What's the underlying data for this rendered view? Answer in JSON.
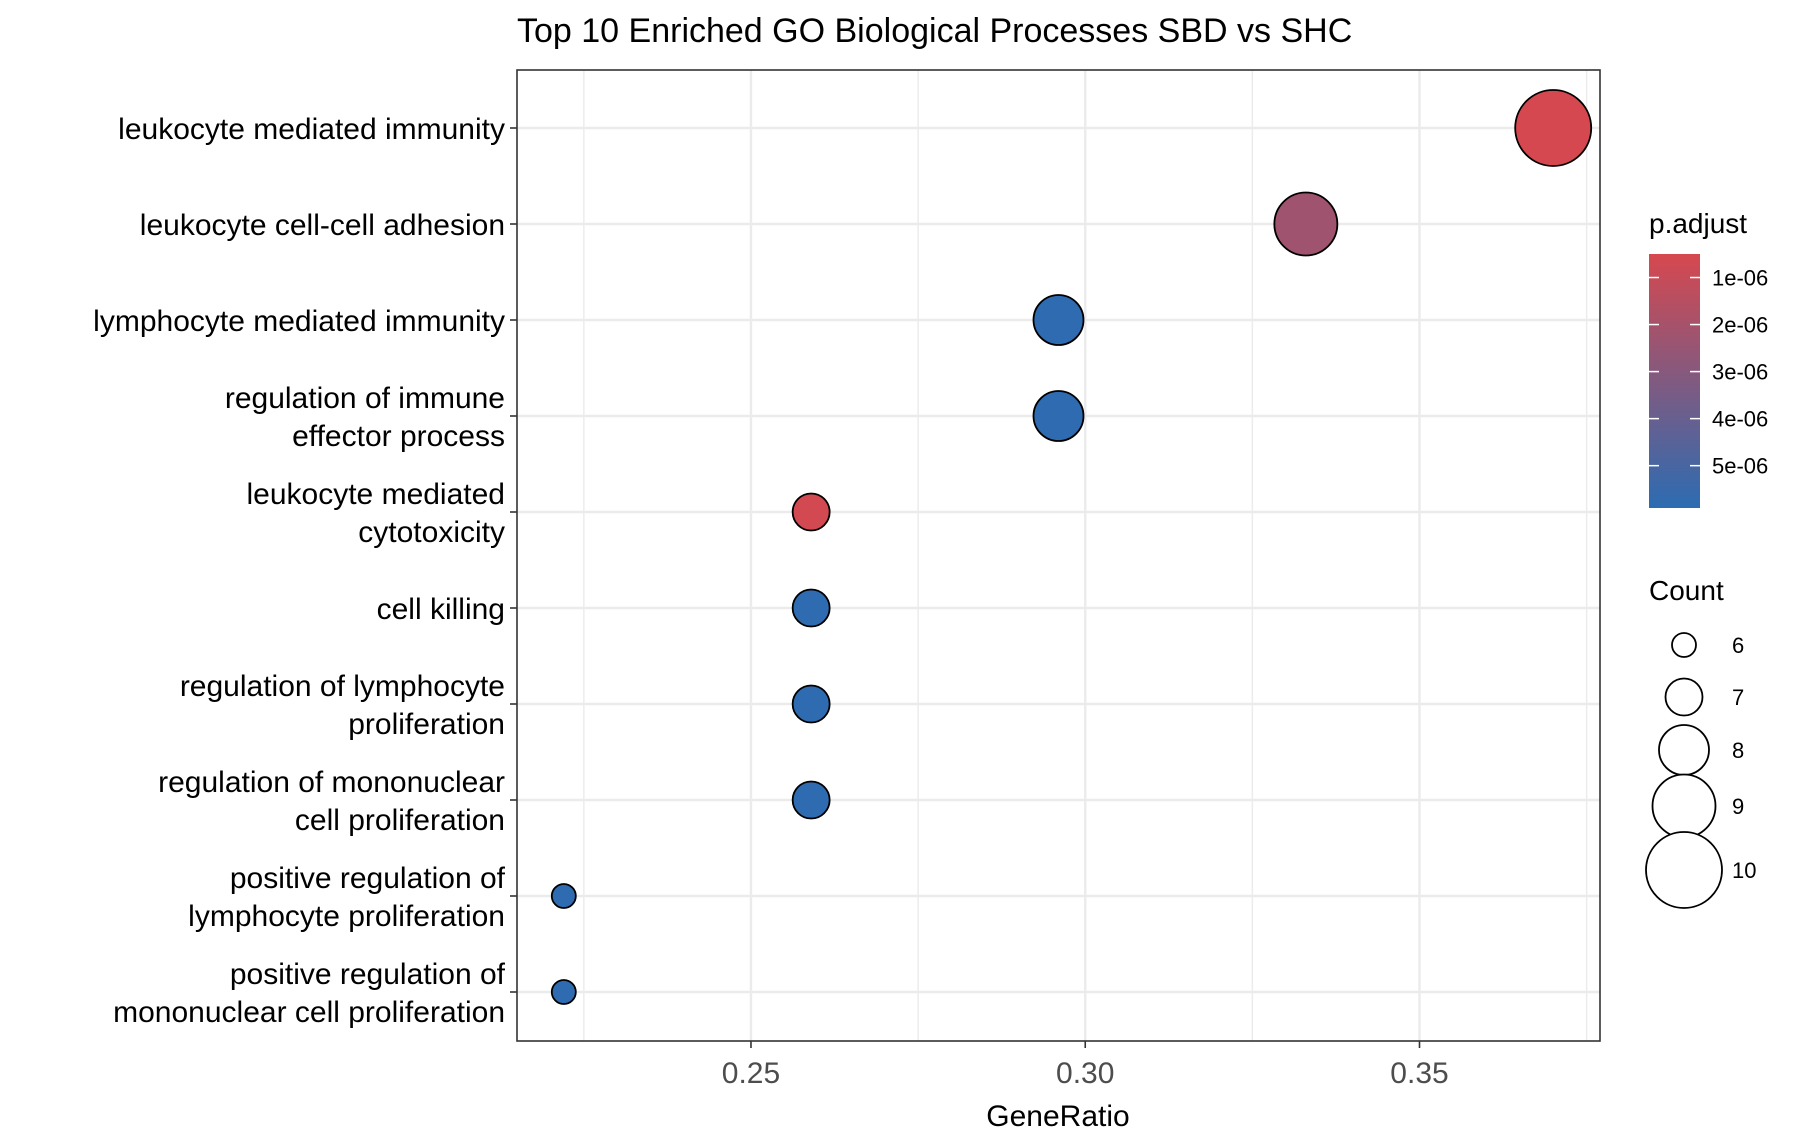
{
  "chart_data": {
    "type": "scatter",
    "title": "Top 10 Enriched GO Biological Processes SBD vs SHC",
    "xlabel": "GeneRatio",
    "ylabel": "",
    "xlim": [
      0.215,
      0.377
    ],
    "x_ticks": [
      0.25,
      0.3,
      0.35
    ],
    "x_tick_labels": [
      "0.25",
      "0.30",
      "0.35"
    ],
    "grid": true,
    "categories": [
      "leukocyte mediated immunity",
      "leukocyte cell-cell adhesion",
      "lymphocyte mediated immunity",
      "regulation of immune effector process",
      "leukocyte mediated cytotoxicity",
      "cell killing",
      "regulation of lymphocyte proliferation",
      "regulation of mononuclear cell proliferation",
      "positive regulation of lymphocyte proliferation",
      "positive regulation of mononuclear cell proliferation"
    ],
    "category_lines": [
      [
        "leukocyte mediated immunity"
      ],
      [
        "leukocyte cell-cell adhesion"
      ],
      [
        "lymphocyte mediated immunity"
      ],
      [
        "regulation of immune",
        "effector process"
      ],
      [
        "leukocyte mediated",
        "cytotoxicity"
      ],
      [
        "cell killing"
      ],
      [
        "regulation of lymphocyte",
        "proliferation"
      ],
      [
        "regulation of mononuclear",
        "cell proliferation"
      ],
      [
        "positive regulation of",
        "lymphocyte proliferation"
      ],
      [
        "positive regulation of",
        "mononuclear cell proliferation"
      ]
    ],
    "points": [
      {
        "term": "leukocyte mediated immunity",
        "gene_ratio": 0.37,
        "count": 10,
        "p_adjust": 5e-07
      },
      {
        "term": "leukocyte cell-cell adhesion",
        "gene_ratio": 0.333,
        "count": 9,
        "p_adjust": 2.2e-06
      },
      {
        "term": "lymphocyte mediated immunity",
        "gene_ratio": 0.296,
        "count": 8,
        "p_adjust": 5.8e-06
      },
      {
        "term": "regulation of immune effector process",
        "gene_ratio": 0.296,
        "count": 8,
        "p_adjust": 5.8e-06
      },
      {
        "term": "leukocyte mediated cytotoxicity",
        "gene_ratio": 0.259,
        "count": 7,
        "p_adjust": 6e-07
      },
      {
        "term": "cell killing",
        "gene_ratio": 0.259,
        "count": 7,
        "p_adjust": 5.8e-06
      },
      {
        "term": "regulation of lymphocyte proliferation",
        "gene_ratio": 0.259,
        "count": 7,
        "p_adjust": 5.8e-06
      },
      {
        "term": "regulation of mononuclear cell proliferation",
        "gene_ratio": 0.259,
        "count": 7,
        "p_adjust": 5.8e-06
      },
      {
        "term": "positive regulation of lymphocyte proliferation",
        "gene_ratio": 0.222,
        "count": 6,
        "p_adjust": 5.8e-06
      },
      {
        "term": "positive regulation of mononuclear cell proliferation",
        "gene_ratio": 0.222,
        "count": 6,
        "p_adjust": 5.8e-06
      }
    ],
    "color_legend": {
      "title": "p.adjust",
      "range": [
        5e-07,
        5.9e-06
      ],
      "high_color": "#d6484f",
      "low_color": "#2c6cb2",
      "ticks": [
        1e-06,
        2e-06,
        3e-06,
        4e-06,
        5e-06
      ],
      "tick_labels": [
        "1e-06",
        "2e-06",
        "3e-06",
        "4e-06",
        "5e-06"
      ]
    },
    "size_legend": {
      "title": "Count",
      "values": [
        6,
        7,
        8,
        9,
        10
      ],
      "labels": [
        "6",
        "7",
        "8",
        "9",
        "10"
      ]
    },
    "colors": {
      "low_p": "#d6484f",
      "high_p": "#2c6cb2",
      "grid": "#ebebeb",
      "panel_border": "#333333"
    }
  }
}
